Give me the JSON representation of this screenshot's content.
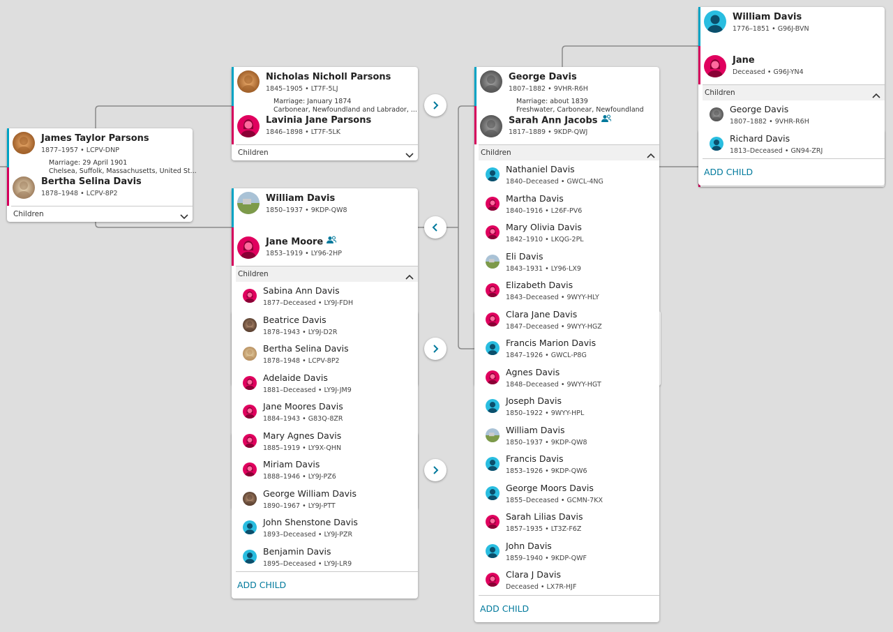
{
  "cards": [
    {
      "husband": {
        "name": "James Taylor Parsons",
        "info": "1877–1957 • LCPV-DNP"
      },
      "marriage": [
        "Marriage: 29 April 1901",
        "Chelsea, Suffolk, Massachusetts, United St..."
      ],
      "wife": {
        "name": "Bertha Selina Davis",
        "info": "1878–1948 • LCPV-8P2"
      },
      "children_label": "Children"
    },
    {
      "husband": {
        "name": "Nicholas Nicholl Parsons",
        "info": "1845–1905 • LT7F-5LJ"
      },
      "marriage": [
        "Marriage: January 1874",
        "Carbonear, Newfoundland and Labrador, ..."
      ],
      "wife": {
        "name": "Lavinia Jane Parsons",
        "info": "1846–1898 • LT7F-5LK"
      },
      "children_label": "Children"
    },
    {
      "husband": {
        "name": "William Davis",
        "info": "1850–1937 • 9KDP-QW8"
      },
      "wife": {
        "name": "Jane Moore",
        "info": "1853–1919 • LY96-2HP"
      },
      "children_label": "Children",
      "children": [
        {
          "name": "Sabina Ann Davis",
          "info": "1877–Deceased • LY9J-FDH"
        },
        {
          "name": "Beatrice Davis",
          "info": "1878–1943 • LY9J-D2R"
        },
        {
          "name": "Bertha Selina Davis",
          "info": "1878–1948 • LCPV-8P2"
        },
        {
          "name": "Adelaide Davis",
          "info": "1881–Deceased • LY9J-JM9"
        },
        {
          "name": "Jane Moores Davis",
          "info": "1884–1943 • G83Q-8ZR"
        },
        {
          "name": "Mary Agnes Davis",
          "info": "1885–1919 • LY9X-QHN"
        },
        {
          "name": "Miriam Davis",
          "info": "1888–1946 • LY9J-PZ6"
        },
        {
          "name": "George William Davis",
          "info": "1890–1967 • LY9J-PTT"
        },
        {
          "name": "John Shenstone Davis",
          "info": "1893–Deceased • LY9J-PZR"
        },
        {
          "name": "Benjamin Davis",
          "info": "1895–Deceased • LY9J-LR9"
        }
      ],
      "add_child": "ADD CHILD"
    },
    {
      "husband": {
        "name": "George Davis",
        "info": "1807–1882 • 9VHR-R6H"
      },
      "marriage": [
        "Marriage: about 1839",
        "Freshwater, Carbonear, Newfoundland"
      ],
      "wife": {
        "name": "Sarah Ann Jacobs",
        "info": "1817–1889 • 9KDP-QWJ"
      },
      "children_label": "Children",
      "children": [
        {
          "name": "Nathaniel Davis",
          "info": "1840–Deceased • GWCL-4NG"
        },
        {
          "name": "Martha Davis",
          "info": "1840–1916 • L26F-PV6"
        },
        {
          "name": "Mary Olivia Davis",
          "info": "1842–1910 • LKQG-2PL"
        },
        {
          "name": "Eli Davis",
          "info": "1843–1931 • LY96-LX9"
        },
        {
          "name": "Elizabeth Davis",
          "info": "1843–Deceased • 9WYY-HLY"
        },
        {
          "name": "Clara Jane Davis",
          "info": "1847–Deceased • 9WYY-HGZ"
        },
        {
          "name": "Francis Marion Davis",
          "info": "1847–1926 • GWCL-P8G"
        },
        {
          "name": "Agnes Davis",
          "info": "1848–Deceased • 9WYY-HGT"
        },
        {
          "name": "Joseph Davis",
          "info": "1850–1922 • 9WYY-HPL"
        },
        {
          "name": "William Davis",
          "info": "1850–1937 • 9KDP-QW8"
        },
        {
          "name": "Francis Davis",
          "info": "1853–1926 • 9KDP-QW6"
        },
        {
          "name": "George Moors Davis",
          "info": "1855–Deceased • GCMN-7KX"
        },
        {
          "name": "Sarah Lilias Davis",
          "info": "1857–1935 • LT3Z-F6Z"
        },
        {
          "name": "John Davis",
          "info": "1859–1940 • 9KDP-QWF"
        },
        {
          "name": "Clara J Davis",
          "info": "Deceased • LX7R-HJF"
        }
      ],
      "add_child": "ADD CHILD"
    },
    {
      "husband": {
        "name": "William Davis",
        "info": "1776–1851 • G96J-BVN"
      },
      "wife": {
        "name": "Jane",
        "info": "Deceased • G96J-YN4"
      },
      "children_label": "Children",
      "children": [
        {
          "name": "George Davis",
          "info": "1807–1882 • 9VHR-R6H"
        },
        {
          "name": "Richard Davis",
          "info": "1813–Deceased • GN94-ZRJ"
        }
      ],
      "add_child": "ADD CHILD"
    }
  ]
}
